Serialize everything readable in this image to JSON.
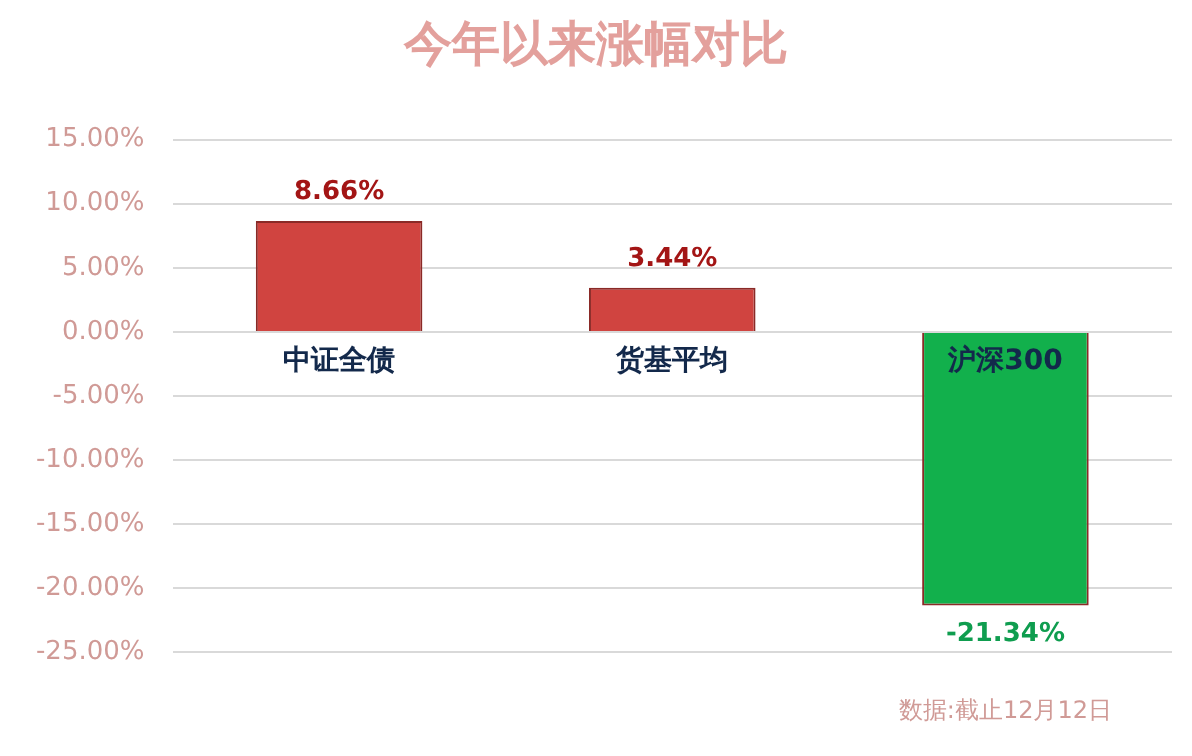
{
  "chart_data": {
    "type": "bar",
    "title": "今年以来涨幅对比",
    "categories": [
      "中证全债",
      "货基平均",
      "沪深300"
    ],
    "values": [
      8.66,
      3.44,
      -21.34
    ],
    "colors": [
      "#d04440",
      "#d04440",
      "#12b04c"
    ],
    "value_labels": [
      "8.66%",
      "3.44%",
      "-21.34%"
    ],
    "ylim": [
      -25,
      15
    ],
    "yticks": [
      {
        "value": -25,
        "label": "-25.00%"
      },
      {
        "value": -20,
        "label": "-20.00%"
      },
      {
        "value": -15,
        "label": "-15.00%"
      },
      {
        "value": -10,
        "label": "-10.00%"
      },
      {
        "value": -5,
        "label": "-5.00%"
      },
      {
        "value": 0,
        "label": "0.00%"
      },
      {
        "value": 5,
        "label": "5.00%"
      },
      {
        "value": 10,
        "label": "10.00%"
      },
      {
        "value": 15,
        "label": "15.00%"
      }
    ],
    "grid": "y",
    "legend": false,
    "annotations": [
      "数据:截止12月12日"
    ]
  }
}
